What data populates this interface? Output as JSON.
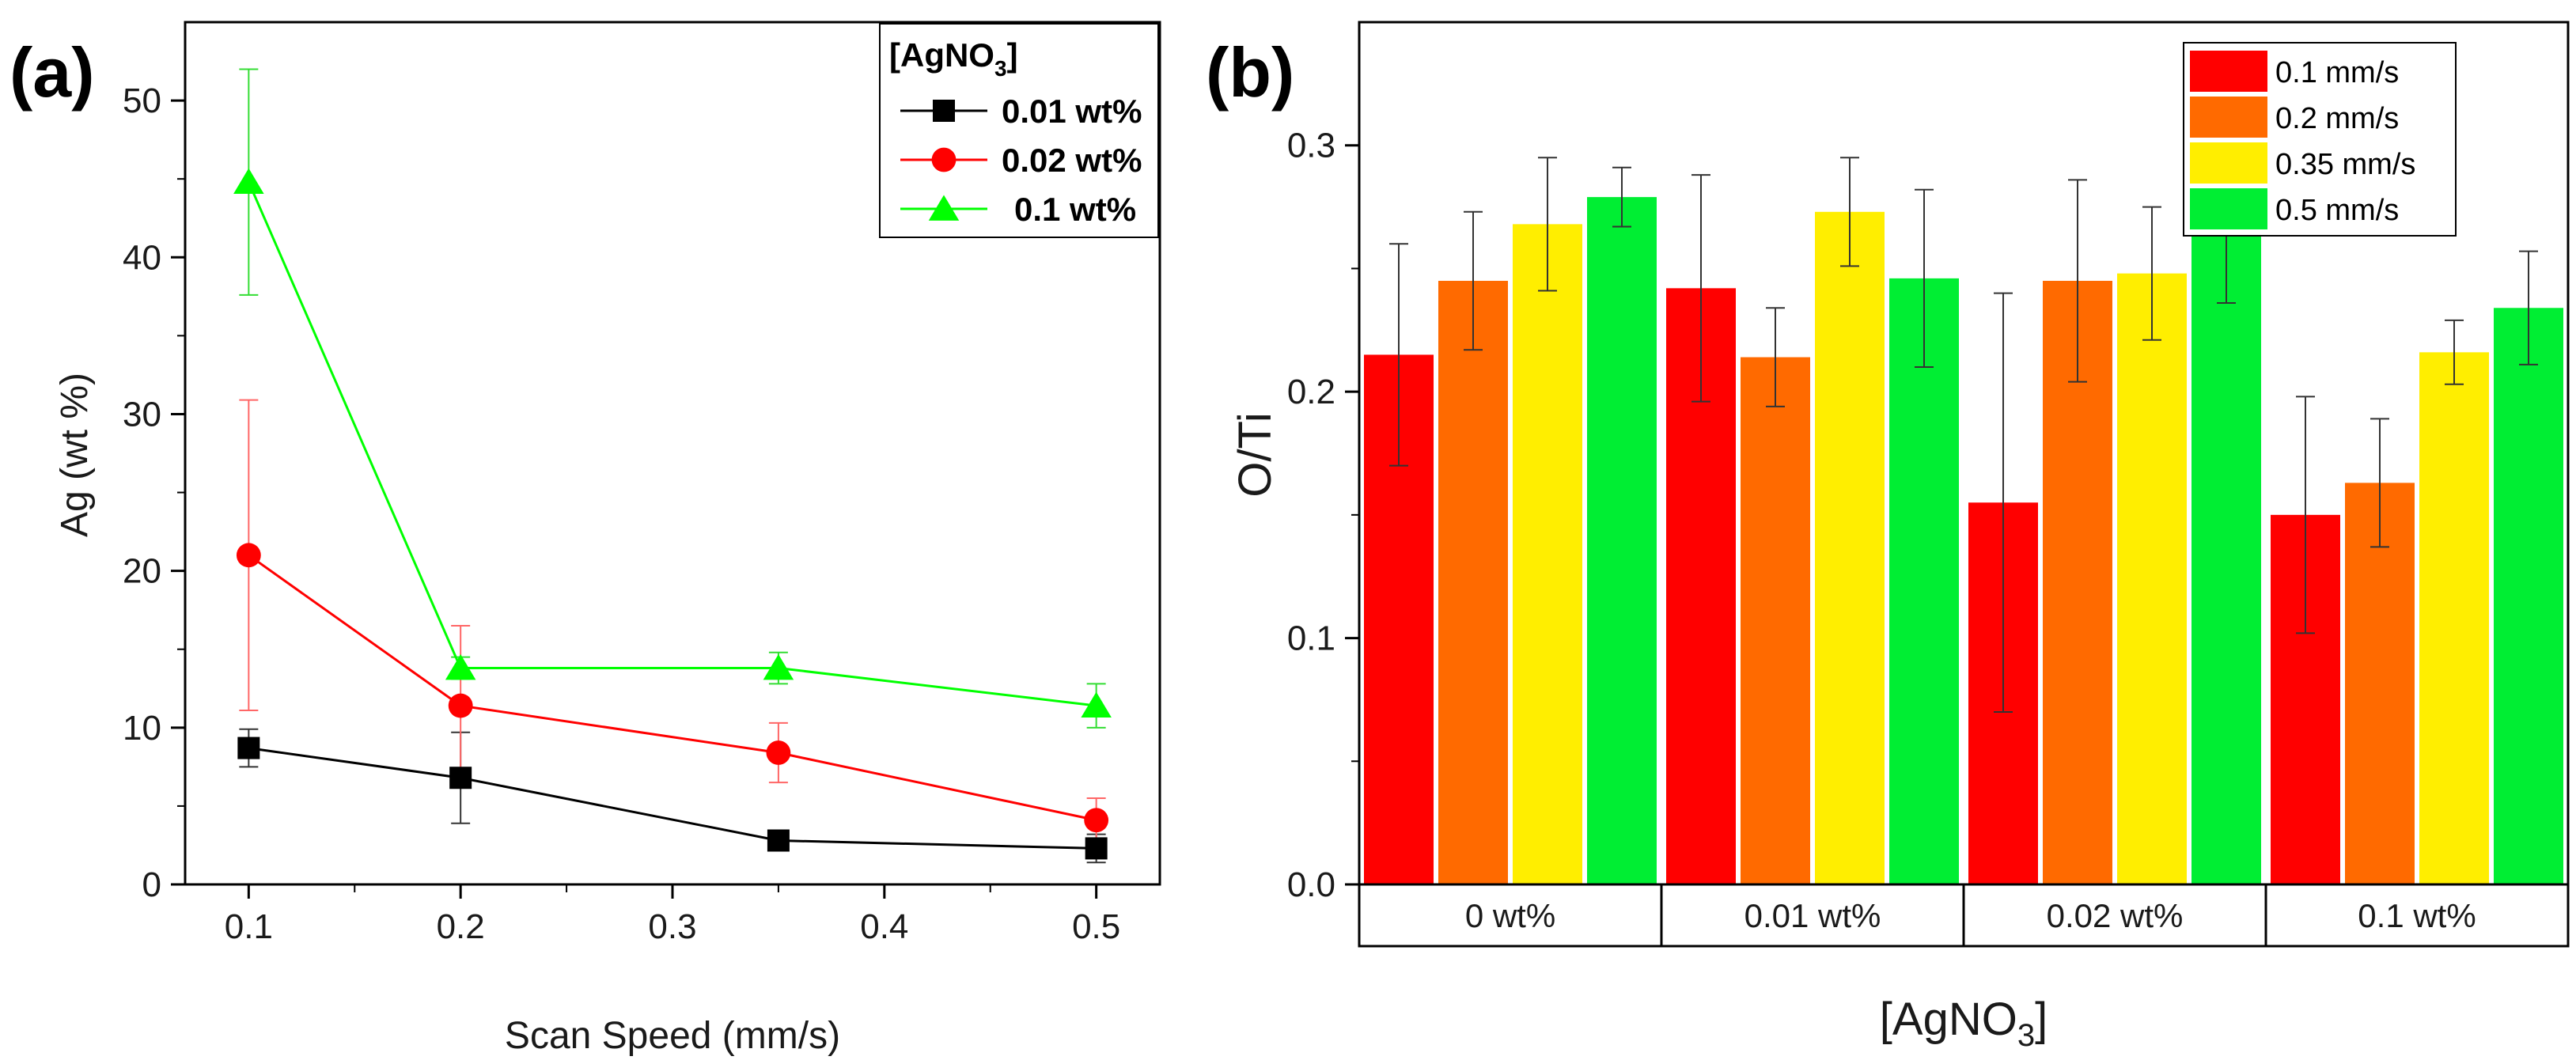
{
  "chart_data": [
    {
      "type": "line",
      "panel_label": "(a)",
      "xlabel": "Scan Speed (mm/s)",
      "ylabel": "Ag (wt %)",
      "xlim": [
        0.07,
        0.53
      ],
      "ylim": [
        0,
        55
      ],
      "xticks": [
        0.1,
        0.2,
        0.3,
        0.4,
        0.5
      ],
      "xtick_labels": [
        "0.1",
        "0.2",
        "0.3",
        "0.4",
        "0.5"
      ],
      "yticks": [
        0,
        10,
        20,
        30,
        40,
        50
      ],
      "ytick_labels": [
        "0",
        "10",
        "20",
        "30",
        "40",
        "50"
      ],
      "legend_title_main": "[AgNO",
      "legend_title_sub": "3",
      "legend_title_end": "]",
      "legend_position": "top-right",
      "x": [
        0.1,
        0.2,
        0.35,
        0.5
      ],
      "series": [
        {
          "name": "0.01 wt%",
          "color": "#000000",
          "marker": "square",
          "values": [
            8.7,
            6.8,
            2.8,
            2.3
          ],
          "errors": [
            1.2,
            2.9,
            0.4,
            0.9
          ]
        },
        {
          "name": "0.02 wt%",
          "color": "#ff0000",
          "marker": "circle",
          "values": [
            21.0,
            11.4,
            8.4,
            4.1
          ],
          "errors": [
            9.9,
            5.1,
            1.9,
            1.4
          ]
        },
        {
          "name": "0.1 wt%",
          "color": "#00ff00",
          "marker": "triangle",
          "values": [
            44.8,
            13.8,
            13.8,
            11.4
          ],
          "errors": [
            7.2,
            0.7,
            1.0,
            1.4
          ]
        }
      ]
    },
    {
      "type": "bar",
      "panel_label": "(b)",
      "xlabel_main": "[AgNO",
      "xlabel_sub": "3",
      "xlabel_end": "]",
      "ylabel": "O/Ti",
      "ylim": [
        0,
        0.35
      ],
      "yticks": [
        0.0,
        0.1,
        0.2,
        0.3
      ],
      "ytick_labels": [
        "0.0",
        "0.1",
        "0.2",
        "0.3"
      ],
      "categories": [
        "0 wt%",
        "0.01 wt%",
        "0.02 wt%",
        "0.1 wt%"
      ],
      "legend_position": "top-right",
      "series": [
        {
          "name": "0.1 mm/s",
          "color": "#ff0000",
          "values": [
            0.215,
            0.242,
            0.155,
            0.15
          ],
          "errors": [
            0.045,
            0.046,
            0.085,
            0.048
          ]
        },
        {
          "name": "0.2 mm/s",
          "color": "#ff6a00",
          "values": [
            0.245,
            0.214,
            0.245,
            0.163
          ],
          "errors": [
            0.028,
            0.02,
            0.041,
            0.026
          ]
        },
        {
          "name": "0.35 mm/s",
          "color": "#ffee00",
          "values": [
            0.268,
            0.273,
            0.248,
            0.216
          ],
          "errors": [
            0.027,
            0.022,
            0.027,
            0.013
          ]
        },
        {
          "name": "0.5 mm/s",
          "color": "#00ee33",
          "values": [
            0.279,
            0.246,
            0.263,
            0.234
          ],
          "errors": [
            0.012,
            0.036,
            0.027,
            0.023
          ]
        }
      ]
    }
  ]
}
